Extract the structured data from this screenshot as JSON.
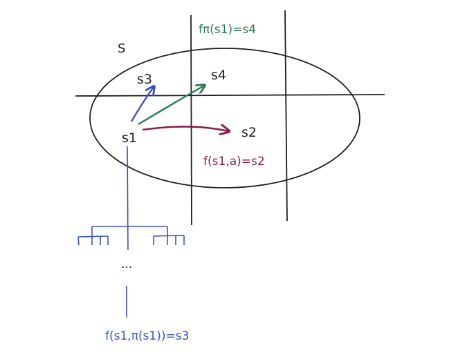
{
  "labels": {
    "set": "S",
    "s1": "s1",
    "s2": "s2",
    "s3": "s3",
    "s4": "s4",
    "f_pi_s1": "fπ(s1)=s4",
    "f_s1_a": "f(s1,a)=s2",
    "f_s1_pi": "f(s1,π(s1))=s3",
    "ellipsis": "..."
  },
  "colors": {
    "ink": "#1e1e1e",
    "blue": "#3b4fc9",
    "green": "#2b7a57",
    "crimson": "#8b1e4b"
  }
}
